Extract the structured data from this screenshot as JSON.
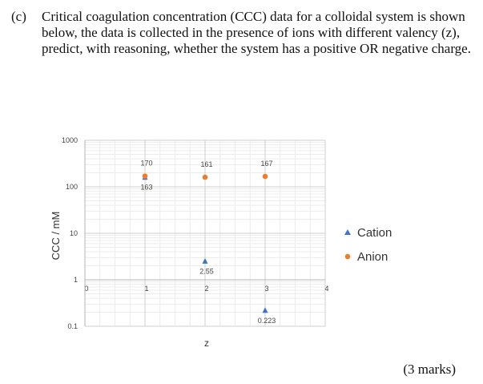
{
  "question": {
    "label": "(c)",
    "text": "Critical coagulation concentration (CCC) data for a colloidal system is shown below, the data is collected in the presence of ions with different valency (z), predict, with reasoning, whether the system has a positive OR negative charge.",
    "marks": "(3 marks)"
  },
  "chart_data": {
    "type": "scatter",
    "title": "",
    "xlabel": "z",
    "ylabel": "CCC / mM",
    "y_scale": "log",
    "xlim": [
      0,
      4
    ],
    "ylim": [
      0.1,
      1000
    ],
    "x_ticks": [
      "0",
      "1",
      "2",
      "3",
      "4"
    ],
    "y_ticks": [
      "0.1",
      "1",
      "10",
      "100",
      "1000"
    ],
    "grid": true,
    "legend_position": "right",
    "series": [
      {
        "name": "Cation",
        "marker": "triangle",
        "color": "#4472c4",
        "points": [
          {
            "x": 1,
            "y": 163,
            "label": "163"
          },
          {
            "x": 2,
            "y": 2.55,
            "label": "2.55"
          },
          {
            "x": 3,
            "y": 0.223,
            "label": "0.223"
          }
        ]
      },
      {
        "name": "Anion",
        "marker": "circle",
        "color": "#ed7d31",
        "points": [
          {
            "x": 1,
            "y": 170,
            "label": "170"
          },
          {
            "x": 2,
            "y": 161,
            "label": "161"
          },
          {
            "x": 3,
            "y": 167,
            "label": "167"
          }
        ]
      }
    ]
  }
}
